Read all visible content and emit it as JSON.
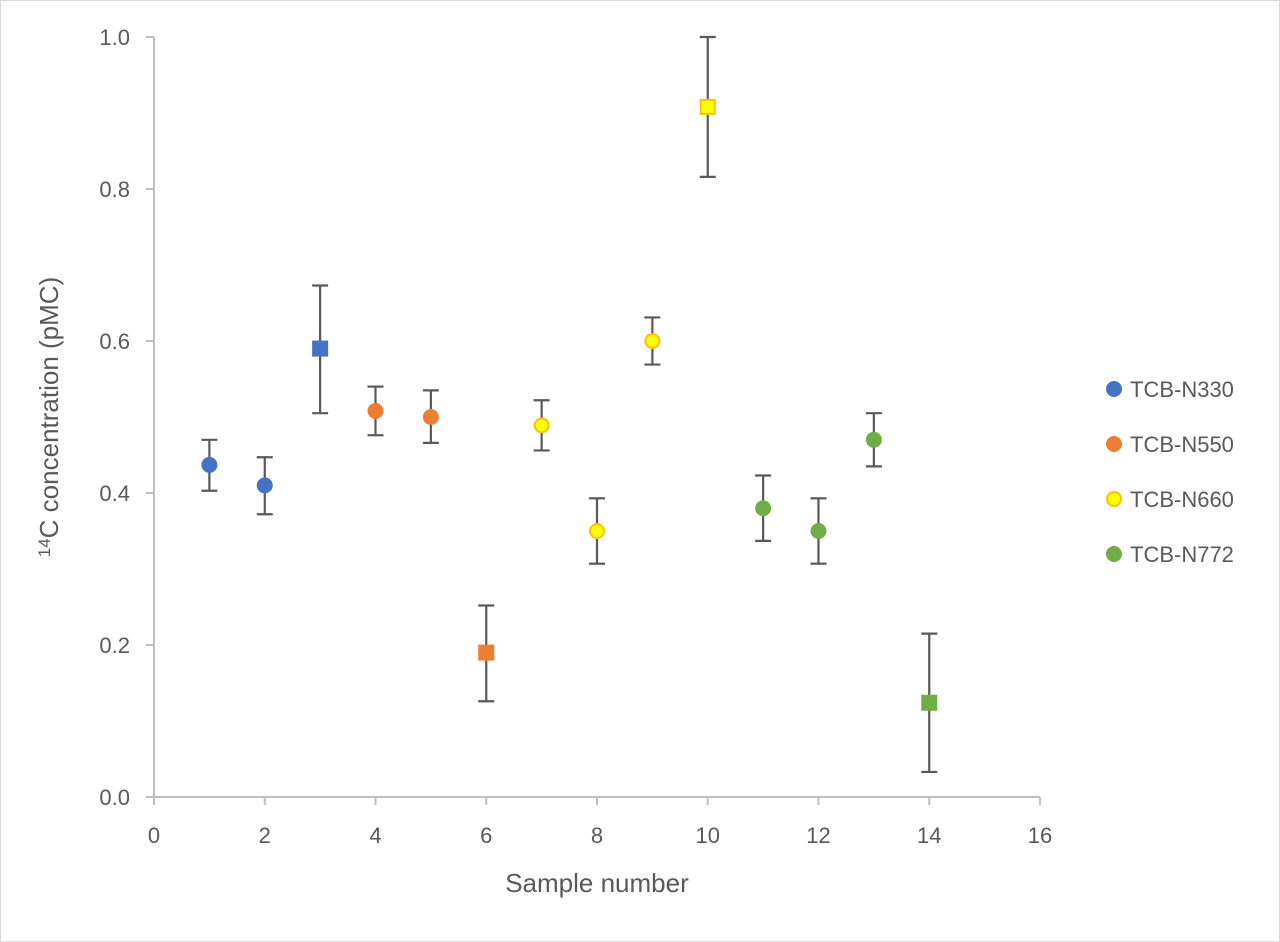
{
  "chart_data": {
    "type": "scatter",
    "xlabel": "Sample number",
    "ylabel": "C concentration (pMC)",
    "ylabel_superscript": "14",
    "xlim": [
      0,
      16
    ],
    "ylim": [
      0,
      1.0
    ],
    "x_ticks": [
      "0",
      "2",
      "4",
      "6",
      "8",
      "10",
      "12",
      "14",
      "16"
    ],
    "y_ticks": [
      "0.0",
      "0.2",
      "0.4",
      "0.6",
      "0.8",
      "1.0"
    ],
    "grid": false,
    "legend_position": "right",
    "series": [
      {
        "name": "TCB-N330",
        "color": "#4472c4",
        "border": "#4472c4",
        "points": [
          {
            "x": 1,
            "y": 0.437,
            "err_low": 0.403,
            "err_high": 0.47,
            "marker": "circle"
          },
          {
            "x": 2,
            "y": 0.41,
            "err_low": 0.372,
            "err_high": 0.447,
            "marker": "circle"
          },
          {
            "x": 3,
            "y": 0.59,
            "err_low": 0.505,
            "err_high": 0.673,
            "marker": "square"
          }
        ]
      },
      {
        "name": "TCB-N550",
        "color": "#ed7d31",
        "border": "#ed7d31",
        "points": [
          {
            "x": 4,
            "y": 0.508,
            "err_low": 0.476,
            "err_high": 0.54,
            "marker": "circle"
          },
          {
            "x": 5,
            "y": 0.5,
            "err_low": 0.466,
            "err_high": 0.535,
            "marker": "circle"
          },
          {
            "x": 6,
            "y": 0.19,
            "err_low": 0.126,
            "err_high": 0.252,
            "marker": "square"
          }
        ]
      },
      {
        "name": "TCB-N660",
        "color": "#ffff00",
        "border": "#ffc000",
        "points": [
          {
            "x": 7,
            "y": 0.489,
            "err_low": 0.456,
            "err_high": 0.522,
            "marker": "circle"
          },
          {
            "x": 8,
            "y": 0.35,
            "err_low": 0.307,
            "err_high": 0.393,
            "marker": "circle"
          },
          {
            "x": 9,
            "y": 0.6,
            "err_low": 0.569,
            "err_high": 0.631,
            "marker": "circle"
          },
          {
            "x": 10,
            "y": 0.908,
            "err_low": 0.816,
            "err_high": 1.0,
            "marker": "square"
          }
        ]
      },
      {
        "name": "TCB-N772",
        "color": "#70ad47",
        "border": "#70ad47",
        "points": [
          {
            "x": 11,
            "y": 0.38,
            "err_low": 0.337,
            "err_high": 0.423,
            "marker": "circle"
          },
          {
            "x": 12,
            "y": 0.35,
            "err_low": 0.307,
            "err_high": 0.393,
            "marker": "circle"
          },
          {
            "x": 13,
            "y": 0.47,
            "err_low": 0.435,
            "err_high": 0.505,
            "marker": "circle"
          },
          {
            "x": 14,
            "y": 0.124,
            "err_low": 0.033,
            "err_high": 0.215,
            "marker": "square"
          }
        ]
      }
    ]
  }
}
